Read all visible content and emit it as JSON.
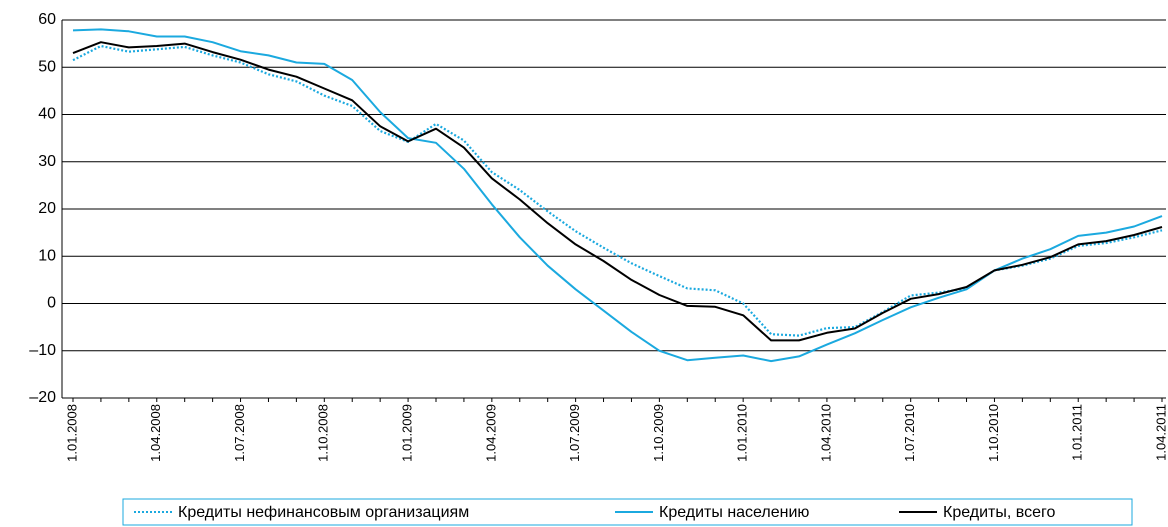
{
  "chart_data": {
    "type": "line",
    "categories": [
      "1.01.2008",
      null,
      null,
      "1.04.2008",
      null,
      null,
      "1.07.2008",
      null,
      null,
      "1.10.2008",
      null,
      null,
      "1.01.2009",
      null,
      null,
      "1.04.2009",
      null,
      null,
      "1.07.2009",
      null,
      null,
      "1.10.2009",
      null,
      null,
      "1.01.2010",
      null,
      null,
      "1.04.2010",
      null,
      null,
      "1.07.2010",
      null,
      null,
      "1.10.2010",
      null,
      null,
      "1.01.2011",
      null,
      null,
      "1.04.2011"
    ],
    "series": [
      {
        "name": "Кредиты нефинансовым организациям",
        "color": "#1ba9df",
        "dash": "dotted",
        "values": [
          51.5,
          54.5,
          53.3,
          53.8,
          54.3,
          52.5,
          51,
          48.5,
          47,
          44,
          41.8,
          36.5,
          34.2,
          38,
          34.5,
          27.8,
          24,
          19.5,
          15.3,
          11.8,
          8.5,
          5.8,
          3.2,
          2.8,
          0,
          -6.5,
          -6.8,
          -5.2,
          -5,
          -1.8,
          1.7,
          2.3,
          3.2,
          7,
          8,
          9.5,
          12.2,
          12.8,
          14,
          15.5
        ]
      },
      {
        "name": "Кредиты населению",
        "color": "#1ba9df",
        "dash": "solid",
        "values": [
          57.8,
          58,
          57.6,
          56.5,
          56.5,
          55.3,
          53.4,
          52.5,
          51,
          50.7,
          47.3,
          40.5,
          35,
          34,
          28.5,
          21,
          14,
          8,
          3,
          -1.5,
          -6,
          -10,
          -12,
          -11.5,
          -11,
          -12.2,
          -11.2,
          -8.7,
          -6.3,
          -3.5,
          -0.8,
          1.2,
          3,
          7,
          9.5,
          11.5,
          14.3,
          15,
          16.3,
          18.5
        ]
      },
      {
        "name": "Кредиты, всего",
        "color": "#000000",
        "dash": "solid",
        "values": [
          53,
          55.3,
          54.2,
          54.5,
          55,
          53.2,
          51.6,
          49.5,
          48,
          45.5,
          43,
          37.5,
          34.3,
          37,
          33,
          26.5,
          22,
          17,
          12.5,
          9,
          5,
          1.8,
          -0.5,
          -0.7,
          -2.5,
          -7.8,
          -7.8,
          -6.2,
          -5.3,
          -2,
          1,
          2,
          3.5,
          7,
          8.2,
          9.8,
          12.5,
          13.2,
          14.5,
          16.2
        ]
      }
    ],
    "ylim": [
      -20,
      60
    ],
    "yticks": [
      {
        "value": -20,
        "label": "–20"
      },
      {
        "value": -10,
        "label": "–10"
      },
      0,
      10,
      20,
      30,
      40,
      50,
      60
    ],
    "grid": true,
    "legend": "bottom"
  }
}
